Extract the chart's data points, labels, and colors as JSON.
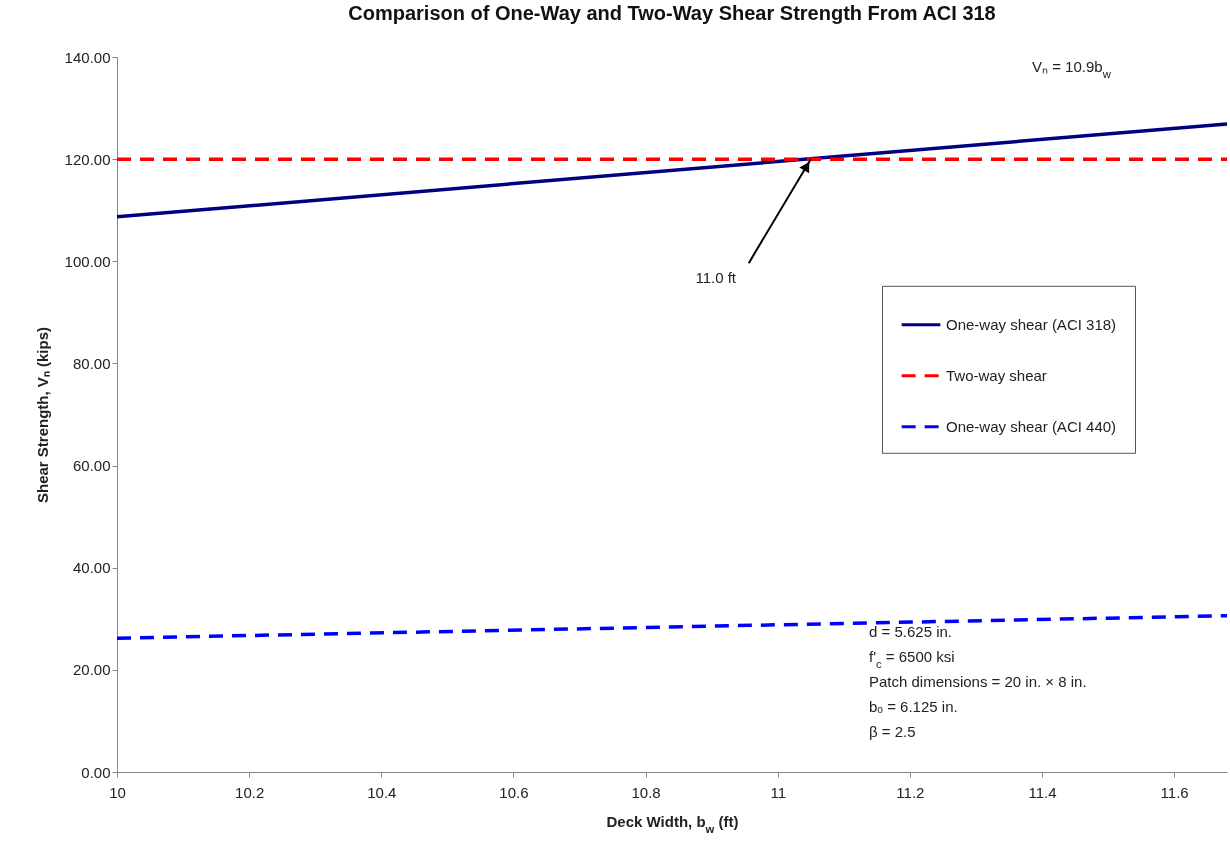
{
  "chart_data": {
    "type": "line",
    "title": "Comparison of One-Way and Two-Way Shear Strength From ACI 318",
    "xlabel": "Deck Width, b$_{w}$ (ft)",
    "ylabel": "Shear Strength, Vₙ (kips)",
    "x": [
      10,
      11.68
    ],
    "series": [
      {
        "name": "One-way shear (ACI 318)",
        "color": "#000080",
        "line_style": "solid",
        "values": [
          108.7,
          126.9
        ]
      },
      {
        "name": "Two-way shear",
        "color": "#ff0000",
        "line_style": "dashed",
        "values": [
          120,
          120
        ]
      },
      {
        "name": "One-way shear (ACI 440)",
        "color": "#0000ff",
        "line_style": "dashed",
        "values": [
          26.2,
          30.6
        ]
      }
    ],
    "xlim": [
      10,
      11.68
    ],
    "xticks": [
      10,
      10.2,
      10.4,
      10.6,
      10.8,
      11,
      11.2,
      11.4,
      11.6
    ],
    "ylim": [
      0,
      140
    ],
    "yticks": [
      {
        "value": 0,
        "label": "0.00"
      },
      {
        "value": 20,
        "label": "20.00"
      },
      {
        "value": 40,
        "label": "40.00"
      },
      {
        "value": 60,
        "label": "60.00"
      },
      {
        "value": 80,
        "label": "80.00"
      },
      {
        "value": 100,
        "label": "100.00"
      },
      {
        "value": 120,
        "label": "120.00"
      },
      {
        "value": 140,
        "label": "140.00"
      }
    ],
    "grid": false,
    "legend": "right",
    "marker": "none",
    "annotations": [
      {
        "text": "11.0 ft",
        "x": 11.05,
        "y": 120
      },
      "Vₙ = 10.9b$_{w}$",
      "d = 5.625 in.",
      "f'$_{c}$ = 6500 ksi",
      "Patch dimensions = 20 in. × 8 in.",
      "bₒ = 6.125 in.",
      "β = 2.5"
    ]
  }
}
